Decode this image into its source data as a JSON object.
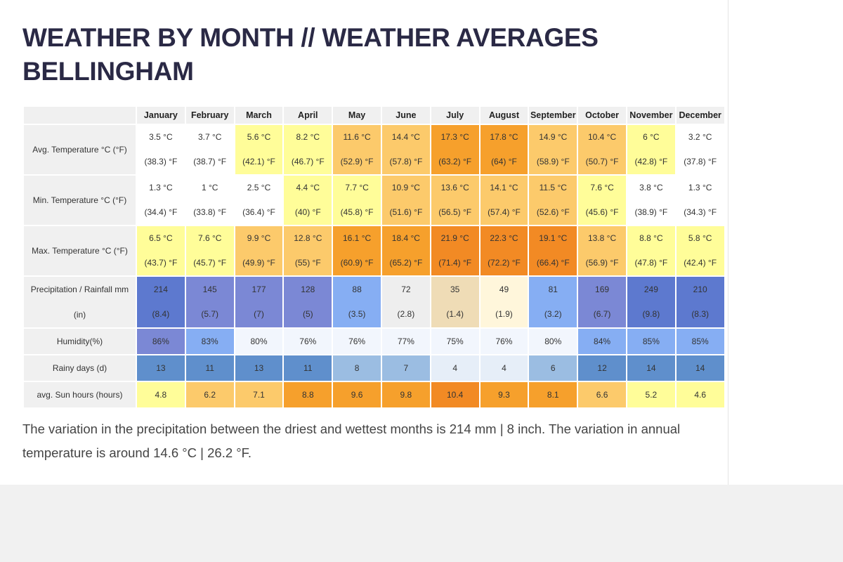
{
  "title_line1": "WEATHER BY MONTH // WEATHER AVERAGES",
  "title_line2": "BELLINGHAM",
  "months": [
    "January",
    "February",
    "March",
    "April",
    "May",
    "June",
    "July",
    "August",
    "September",
    "October",
    "November",
    "December"
  ],
  "rows": [
    {
      "label": "Avg. Temperature °C (°F)",
      "type": "pair",
      "values": [
        {
          "a": "3.5 °C",
          "b": "(38.3) °F",
          "color": "#ffffff"
        },
        {
          "a": "3.7 °C",
          "b": "(38.7) °F",
          "color": "#ffffff"
        },
        {
          "a": "5.6 °C",
          "b": "(42.1) °F",
          "color": "#fffd99"
        },
        {
          "a": "8.2 °C",
          "b": "(46.7) °F",
          "color": "#fffd99"
        },
        {
          "a": "11.6 °C",
          "b": "(52.9) °F",
          "color": "#fcca6b"
        },
        {
          "a": "14.4 °C",
          "b": "(57.8) °F",
          "color": "#fcca6b"
        },
        {
          "a": "17.3 °C",
          "b": "(63.2) °F",
          "color": "#f6a02c"
        },
        {
          "a": "17.8 °C",
          "b": "(64) °F",
          "color": "#f6a02c"
        },
        {
          "a": "14.9 °C",
          "b": "(58.9) °F",
          "color": "#fcca6b"
        },
        {
          "a": "10.4 °C",
          "b": "(50.7) °F",
          "color": "#fcca6b"
        },
        {
          "a": "6 °C",
          "b": "(42.8) °F",
          "color": "#fffd99"
        },
        {
          "a": "3.2 °C",
          "b": "(37.8) °F",
          "color": "#ffffff"
        }
      ]
    },
    {
      "label": "Min. Temperature °C (°F)",
      "type": "pair",
      "values": [
        {
          "a": "1.3 °C",
          "b": "(34.4) °F",
          "color": "#ffffff"
        },
        {
          "a": "1 °C",
          "b": "(33.8) °F",
          "color": "#ffffff"
        },
        {
          "a": "2.5 °C",
          "b": "(36.4) °F",
          "color": "#ffffff"
        },
        {
          "a": "4.4 °C",
          "b": "(40) °F",
          "color": "#fffd99"
        },
        {
          "a": "7.7 °C",
          "b": "(45.8) °F",
          "color": "#fffd99"
        },
        {
          "a": "10.9 °C",
          "b": "(51.6) °F",
          "color": "#fcca6b"
        },
        {
          "a": "13.6 °C",
          "b": "(56.5) °F",
          "color": "#fcca6b"
        },
        {
          "a": "14.1 °C",
          "b": "(57.4) °F",
          "color": "#fcca6b"
        },
        {
          "a": "11.5 °C",
          "b": "(52.6) °F",
          "color": "#fcca6b"
        },
        {
          "a": "7.6 °C",
          "b": "(45.6) °F",
          "color": "#fffd99"
        },
        {
          "a": "3.8 °C",
          "b": "(38.9) °F",
          "color": "#ffffff"
        },
        {
          "a": "1.3 °C",
          "b": "(34.3) °F",
          "color": "#ffffff"
        }
      ]
    },
    {
      "label": "Max. Temperature °C (°F)",
      "type": "pair",
      "values": [
        {
          "a": "6.5 °C",
          "b": "(43.7) °F",
          "color": "#fffd99"
        },
        {
          "a": "7.6 °C",
          "b": "(45.7) °F",
          "color": "#fffd99"
        },
        {
          "a": "9.9 °C",
          "b": "(49.9) °F",
          "color": "#fcca6b"
        },
        {
          "a": "12.8 °C",
          "b": "(55) °F",
          "color": "#fcca6b"
        },
        {
          "a": "16.1 °C",
          "b": "(60.9) °F",
          "color": "#f6a02c"
        },
        {
          "a": "18.4 °C",
          "b": "(65.2) °F",
          "color": "#f6a02c"
        },
        {
          "a": "21.9 °C",
          "b": "(71.4) °F",
          "color": "#f28a24"
        },
        {
          "a": "22.3 °C",
          "b": "(72.2) °F",
          "color": "#f28a24"
        },
        {
          "a": "19.1 °C",
          "b": "(66.4) °F",
          "color": "#f28a24"
        },
        {
          "a": "13.8 °C",
          "b": "(56.9) °F",
          "color": "#fcca6b"
        },
        {
          "a": "8.8 °C",
          "b": "(47.8) °F",
          "color": "#fffd99"
        },
        {
          "a": "5.8 °C",
          "b": "(42.4) °F",
          "color": "#fffd99"
        }
      ]
    },
    {
      "label": "Precipitation / Rainfall mm (in)",
      "type": "pair",
      "values": [
        {
          "a": "214",
          "b": "(8.4)",
          "color": "#5d79cf"
        },
        {
          "a": "145",
          "b": "(5.7)",
          "color": "#7b88d5"
        },
        {
          "a": "177",
          "b": "(7)",
          "color": "#7b88d5"
        },
        {
          "a": "128",
          "b": "(5)",
          "color": "#7b88d5"
        },
        {
          "a": "88",
          "b": "(3.5)",
          "color": "#86aef3"
        },
        {
          "a": "72",
          "b": "(2.8)",
          "color": "#eeeeee"
        },
        {
          "a": "35",
          "b": "(1.4)",
          "color": "#efdcb6"
        },
        {
          "a": "49",
          "b": "(1.9)",
          "color": "#fff6db"
        },
        {
          "a": "81",
          "b": "(3.2)",
          "color": "#86aef3"
        },
        {
          "a": "169",
          "b": "(6.7)",
          "color": "#7b88d5"
        },
        {
          "a": "249",
          "b": "(9.8)",
          "color": "#5d79cf"
        },
        {
          "a": "210",
          "b": "(8.3)",
          "color": "#5d79cf"
        }
      ]
    },
    {
      "label": "Humidity(%)",
      "type": "single",
      "values": [
        {
          "a": "86%",
          "color": "#7b88d5"
        },
        {
          "a": "83%",
          "color": "#86aef3"
        },
        {
          "a": "80%",
          "color": "#f2f6fd"
        },
        {
          "a": "76%",
          "color": "#f2f6fd"
        },
        {
          "a": "76%",
          "color": "#f2f6fd"
        },
        {
          "a": "77%",
          "color": "#f2f6fd"
        },
        {
          "a": "75%",
          "color": "#f2f6fd"
        },
        {
          "a": "76%",
          "color": "#f2f6fd"
        },
        {
          "a": "80%",
          "color": "#f2f6fd"
        },
        {
          "a": "84%",
          "color": "#86aef3"
        },
        {
          "a": "85%",
          "color": "#86aef3"
        },
        {
          "a": "85%",
          "color": "#86aef3"
        }
      ]
    },
    {
      "label": "Rainy days (d)",
      "type": "single",
      "values": [
        {
          "a": "13",
          "color": "#5f8fcc"
        },
        {
          "a": "11",
          "color": "#5f8fcc"
        },
        {
          "a": "13",
          "color": "#5f8fcc"
        },
        {
          "a": "11",
          "color": "#5f8fcc"
        },
        {
          "a": "8",
          "color": "#9bbde2"
        },
        {
          "a": "7",
          "color": "#9bbde2"
        },
        {
          "a": "4",
          "color": "#e6eef8"
        },
        {
          "a": "4",
          "color": "#e6eef8"
        },
        {
          "a": "6",
          "color": "#9bbde2"
        },
        {
          "a": "12",
          "color": "#5f8fcc"
        },
        {
          "a": "14",
          "color": "#5f8fcc"
        },
        {
          "a": "14",
          "color": "#5f8fcc"
        }
      ]
    },
    {
      "label": "avg. Sun hours (hours)",
      "type": "single",
      "sun": true,
      "values": [
        {
          "a": "4.8",
          "color": "#fffd99"
        },
        {
          "a": "6.2",
          "color": "#fcca6b"
        },
        {
          "a": "7.1",
          "color": "#fcca6b"
        },
        {
          "a": "8.8",
          "color": "#f6a02c"
        },
        {
          "a": "9.6",
          "color": "#f6a02c"
        },
        {
          "a": "9.8",
          "color": "#f6a02c"
        },
        {
          "a": "10.4",
          "color": "#f28a24"
        },
        {
          "a": "9.3",
          "color": "#f6a02c"
        },
        {
          "a": "8.1",
          "color": "#f6a02c"
        },
        {
          "a": "6.6",
          "color": "#fcca6b"
        },
        {
          "a": "5.2",
          "color": "#fffd99"
        },
        {
          "a": "4.6",
          "color": "#fffd99"
        }
      ]
    }
  ],
  "description": "The variation in the precipitation between the driest and wettest months is 214 mm | 8 inch. The variation in annual temperature is around 14.6 °C | 26.2 °F."
}
